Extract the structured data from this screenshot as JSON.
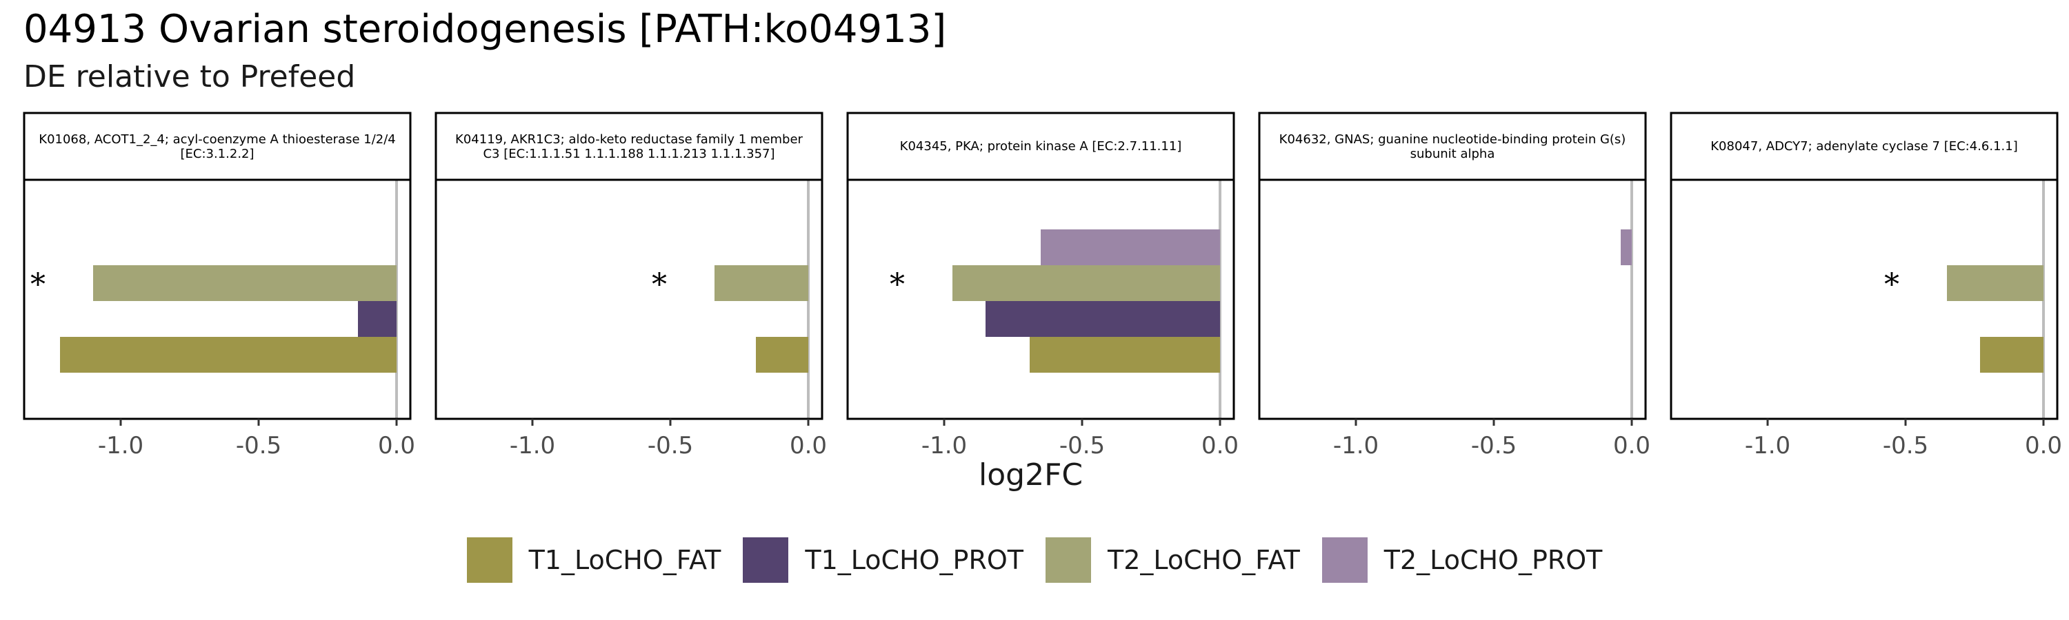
{
  "title": "04913 Ovarian steroidogenesis [PATH:ko04913]",
  "subtitle": "DE relative to Prefeed",
  "legend": [
    {
      "name": "T1_LoCHO_FAT",
      "color": "#9e9649"
    },
    {
      "name": "T1_LoCHO_PROT",
      "color": "#54436f"
    },
    {
      "name": "T2_LoCHO_FAT",
      "color": "#a3a576"
    },
    {
      "name": "T2_LoCHO_PROT",
      "color": "#9b86a6"
    }
  ],
  "chart_data": {
    "type": "bar",
    "orientation": "horizontal",
    "facet": true,
    "xlabel": "log2FC",
    "xlim": [
      -1.35,
      0.05
    ],
    "xticks": [
      -1.0,
      -0.5,
      0.0
    ],
    "xtick_labels": [
      "-1.0",
      "-0.5",
      "0.0"
    ],
    "zero_line": true,
    "grid": false,
    "legend_position": "bottom",
    "series_order": [
      "T1_LoCHO_FAT",
      "T1_LoCHO_PROT",
      "T2_LoCHO_FAT",
      "T2_LoCHO_PROT"
    ],
    "panels": [
      {
        "label": "K01068, ACOT1_2_4; acyl-coenzyme A thioesterase 1/2/4 [EC:3.1.2.2]",
        "values": {
          "T1_LoCHO_FAT": -1.22,
          "T1_LoCHO_PROT": -0.14,
          "T2_LoCHO_FAT": -1.1,
          "T2_LoCHO_PROT": null
        },
        "significant": "*"
      },
      {
        "label": "K04119, AKR1C3; aldo-keto reductase family 1 member C3 [EC:1.1.1.51 1.1.1.188 1.1.1.213 1.1.1.357]",
        "values": {
          "T1_LoCHO_FAT": -0.19,
          "T1_LoCHO_PROT": null,
          "T2_LoCHO_FAT": -0.34,
          "T2_LoCHO_PROT": null
        },
        "significant": "*"
      },
      {
        "label": "K04345, PKA; protein kinase A [EC:2.7.11.11]",
        "values": {
          "T1_LoCHO_FAT": -0.69,
          "T1_LoCHO_PROT": -0.85,
          "T2_LoCHO_FAT": -0.97,
          "T2_LoCHO_PROT": -0.65
        },
        "significant": "*"
      },
      {
        "label": "K04632, GNAS; guanine nucleotide-binding protein G(s) subunit alpha",
        "values": {
          "T1_LoCHO_FAT": null,
          "T1_LoCHO_PROT": null,
          "T2_LoCHO_FAT": null,
          "T2_LoCHO_PROT": -0.04
        },
        "significant": ""
      },
      {
        "label": "K08047, ADCY7; adenylate cyclase 7 [EC:4.6.1.1]",
        "values": {
          "T1_LoCHO_FAT": -0.23,
          "T1_LoCHO_PROT": null,
          "T2_LoCHO_FAT": -0.35,
          "T2_LoCHO_PROT": null
        },
        "significant": "*"
      }
    ]
  }
}
